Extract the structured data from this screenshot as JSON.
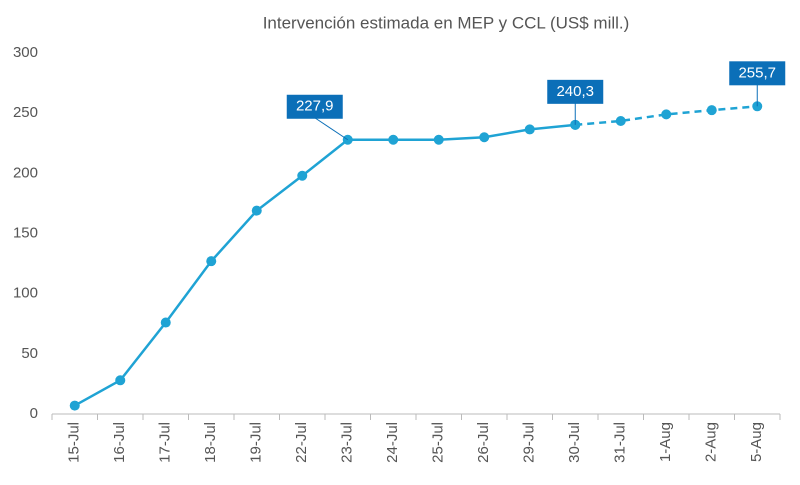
{
  "chart_data": {
    "type": "line",
    "title": "Intervención estimada en MEP y CCL (US$ mill.)",
    "categories": [
      "15-Jul",
      "16-Jul",
      "17-Jul",
      "18-Jul",
      "19-Jul",
      "22-Jul",
      "23-Jul",
      "24-Jul",
      "25-Jul",
      "26-Jul",
      "29-Jul",
      "30-Jul",
      "31-Jul",
      "1-Aug",
      "2-Aug",
      "5-Aug"
    ],
    "series": [
      {
        "color": "#1fa3d4",
        "style": "solid",
        "values": [
          7,
          28,
          76,
          127,
          169,
          198,
          227.9,
          227.9,
          227.9,
          230,
          236.5,
          240.3,
          null,
          null,
          null,
          null
        ],
        "value_labels": [
          null,
          null,
          null,
          null,
          null,
          null,
          "227,9",
          null,
          null,
          null,
          null,
          "240,3",
          null,
          null,
          null,
          null
        ]
      },
      {
        "color": "#1fa3d4",
        "style": "dashed",
        "values": [
          null,
          null,
          null,
          null,
          null,
          null,
          null,
          null,
          null,
          null,
          null,
          240.3,
          243.5,
          249,
          252.5,
          255.7
        ],
        "value_labels": [
          null,
          null,
          null,
          null,
          null,
          null,
          null,
          null,
          null,
          null,
          null,
          null,
          null,
          null,
          null,
          "255,7"
        ]
      }
    ],
    "label_color": "#0b6fb8",
    "ylim": [
      0,
      300
    ],
    "yticks": [
      0,
      50,
      100,
      150,
      200,
      250,
      300
    ],
    "grid": false
  }
}
